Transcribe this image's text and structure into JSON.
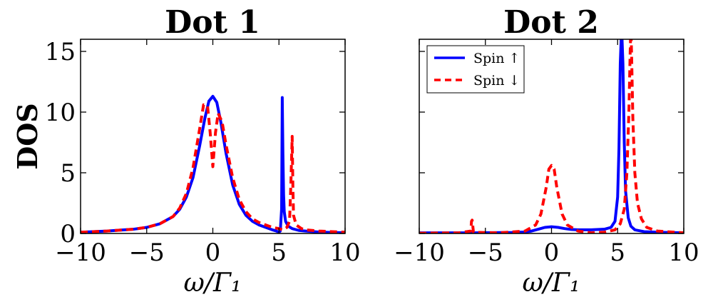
{
  "chart_data": [
    {
      "type": "line",
      "title": "Dot 1",
      "xlabel": "ω/Γ₁",
      "ylabel": "DOS",
      "xlim": [
        -10,
        10
      ],
      "ylim": [
        0,
        16
      ],
      "xticks": [
        -10,
        -5,
        0,
        5,
        10
      ],
      "xtick_labels": [
        "−10",
        "−5",
        "0",
        "5",
        "10"
      ],
      "yticks": [
        0,
        5,
        10,
        15
      ],
      "ytick_labels": [
        "0",
        "5",
        "10",
        "15"
      ],
      "show_yticklabels": true,
      "legend": null,
      "series": [
        {
          "name": "Spin ↑",
          "color": "#0000ff",
          "style": "solid",
          "x": [
            -10,
            -8,
            -6,
            -5,
            -4,
            -3,
            -2.5,
            -2,
            -1.5,
            -1,
            -0.6,
            -0.3,
            0,
            0.3,
            0.6,
            1,
            1.5,
            2,
            2.5,
            3,
            3.5,
            4,
            4.5,
            4.8,
            5.0,
            5.1,
            5.2,
            5.25,
            5.3,
            5.35,
            5.4,
            5.5,
            5.7,
            6.0,
            6.5,
            7,
            8,
            9,
            10
          ],
          "y": [
            0.1,
            0.2,
            0.35,
            0.5,
            0.8,
            1.4,
            2.0,
            3.0,
            4.6,
            7.2,
            9.5,
            10.9,
            11.3,
            10.8,
            9.2,
            6.6,
            4.0,
            2.4,
            1.5,
            1.0,
            0.7,
            0.5,
            0.3,
            0.2,
            0.1,
            0.2,
            2.0,
            11.2,
            6.5,
            3.2,
            1.8,
            1.0,
            0.6,
            0.4,
            0.25,
            0.2,
            0.12,
            0.08,
            0.06
          ]
        },
        {
          "name": "Spin ↓",
          "color": "#ff0000",
          "style": "dashed",
          "x": [
            -10,
            -8,
            -6,
            -5,
            -4,
            -3,
            -2.5,
            -2,
            -1.5,
            -1,
            -0.7,
            -0.4,
            -0.2,
            -0.05,
            0,
            0.05,
            0.2,
            0.4,
            0.7,
            1,
            1.5,
            2,
            2.5,
            3,
            3.5,
            4,
            4.5,
            5,
            5.3,
            5.6,
            5.8,
            5.9,
            6.0,
            6.05,
            6.1,
            6.3,
            6.7,
            7,
            8,
            9,
            10
          ],
          "y": [
            0.1,
            0.2,
            0.35,
            0.5,
            0.8,
            1.4,
            2.1,
            3.3,
            5.4,
            8.6,
            10.6,
            10.5,
            8.3,
            6.2,
            5.5,
            6.2,
            8.3,
            9.9,
            9.2,
            7.3,
            4.6,
            2.8,
            1.8,
            1.2,
            0.9,
            0.7,
            0.5,
            0.4,
            0.3,
            0.5,
            1.0,
            4.0,
            8.0,
            4.0,
            1.5,
            0.7,
            0.4,
            0.3,
            0.2,
            0.15,
            0.1
          ]
        }
      ]
    },
    {
      "type": "line",
      "title": "Dot 2",
      "xlabel": "ω/Γ₁",
      "ylabel": "",
      "xlim": [
        -10,
        10
      ],
      "ylim": [
        0,
        16
      ],
      "xticks": [
        -10,
        -5,
        0,
        5,
        10
      ],
      "xtick_labels": [
        "−10",
        "−5",
        "0",
        "5",
        "10"
      ],
      "yticks": [
        0,
        5,
        10,
        15
      ],
      "ytick_labels": [],
      "show_yticklabels": false,
      "legend": "top-left",
      "series": [
        {
          "name": "Spin ↑",
          "color": "#0000ff",
          "style": "solid",
          "x": [
            -10,
            -6,
            -3,
            -2,
            -1.5,
            -1,
            -0.5,
            0,
            0.5,
            1,
            1.5,
            2,
            3,
            4,
            4.5,
            4.8,
            5.0,
            5.1,
            5.2,
            5.3,
            5.4,
            5.5,
            5.6,
            5.8,
            6.0,
            6.3,
            7,
            8,
            10
          ],
          "y": [
            0.05,
            0.05,
            0.08,
            0.12,
            0.2,
            0.35,
            0.5,
            0.55,
            0.5,
            0.4,
            0.33,
            0.3,
            0.3,
            0.35,
            0.5,
            1.0,
            3.0,
            7.0,
            14.0,
            17.0,
            14.0,
            7.5,
            3.5,
            1.3,
            0.6,
            0.3,
            0.15,
            0.1,
            0.05
          ]
        },
        {
          "name": "Spin ↓",
          "color": "#ff0000",
          "style": "dashed",
          "x": [
            -10,
            -7,
            -6.1,
            -6.05,
            -6.0,
            -5.95,
            -5.9,
            -4,
            -2,
            -1.2,
            -0.8,
            -0.4,
            -0.2,
            0,
            0.2,
            0.4,
            0.8,
            1.2,
            2,
            3,
            4,
            4.8,
            5.2,
            5.5,
            5.7,
            5.85,
            5.95,
            6.0,
            6.05,
            6.15,
            6.3,
            6.5,
            6.8,
            7.2,
            8,
            10
          ],
          "y": [
            0.02,
            0.05,
            0.2,
            1.0,
            1.1,
            0.6,
            0.1,
            0.05,
            0.2,
            0.7,
            1.6,
            3.8,
            5.3,
            5.6,
            5.3,
            3.8,
            1.6,
            0.7,
            0.2,
            0.05,
            0.1,
            0.3,
            0.8,
            2.0,
            5.0,
            10.0,
            15.0,
            17.0,
            15.0,
            9.5,
            5.0,
            2.5,
            1.2,
            0.5,
            0.2,
            0.05
          ]
        }
      ]
    }
  ]
}
